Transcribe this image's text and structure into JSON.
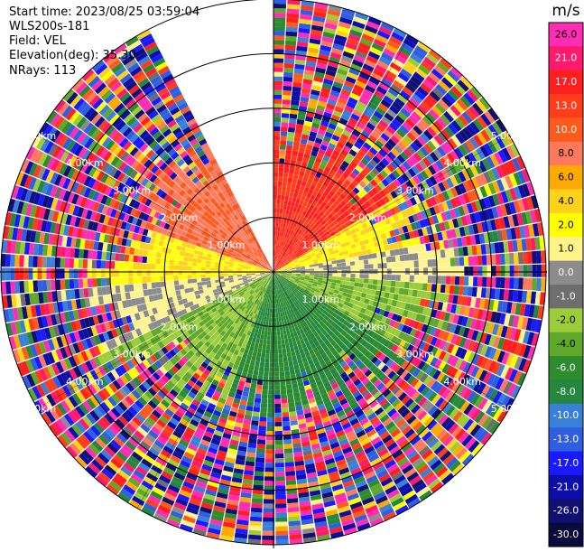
{
  "info": {
    "start_time": "Start time: 2023/08/25 03:59:04",
    "station": "WLS200s-181",
    "field": "Field: VEL",
    "elevation": "Elevation(deg): 35.30",
    "nrays": "NRays: 113"
  },
  "colorbar": {
    "unit": "m/s",
    "ticks": [
      "26.0",
      "21.0",
      "17.0",
      "13.0",
      "10.0",
      "8.0",
      "6.0",
      "4.0",
      "2.0",
      "1.0",
      "0.0",
      "-1.0",
      "-2.0",
      "-4.0",
      "-6.0",
      "-8.0",
      "-10.0",
      "-13.0",
      "-17.0",
      "-21.0",
      "-26.0",
      "-30.0"
    ],
    "colors": [
      "#ff2db4",
      "#ff1a6e",
      "#ff1f1f",
      "#ff3d1a",
      "#ff5a1e",
      "#ff7a5c",
      "#ffaa00",
      "#ffd21a",
      "#ffff00",
      "#fff38a",
      "#8c8c8c",
      "#6e6e6e",
      "#9ccc3a",
      "#5fa82a",
      "#2e8b2e",
      "#23873f",
      "#3a7fd8",
      "#2f5fe0",
      "#1a1aff",
      "#0d0da8",
      "#101070",
      "#0a0a3c"
    ]
  },
  "chart_data": {
    "type": "heatmap",
    "title": "",
    "projection": "polar (PPI)",
    "field": "VEL",
    "units": "m/s",
    "value_range": [
      -30,
      26
    ],
    "range_rings_km": [
      1.0,
      2.0,
      3.0,
      4.0,
      5.0
    ],
    "ring_labels": [
      "1.00km",
      "2.00km",
      "3.00km",
      "4.00km",
      "5.00km"
    ],
    "max_range_km": 5.0,
    "nrays": 113,
    "gap_azimuth_deg": [
      333,
      360
    ],
    "sector_pattern": [
      {
        "azimuth_deg": [
          0,
          60
        ],
        "near_range_velocity_ms": 13.0
      },
      {
        "azimuth_deg": [
          60,
          80
        ],
        "near_range_velocity_ms": 2.0
      },
      {
        "azimuth_deg": [
          80,
          95
        ],
        "near_range_velocity_ms": 0.0
      },
      {
        "azimuth_deg": [
          95,
          120
        ],
        "near_range_velocity_ms": -4.0
      },
      {
        "azimuth_deg": [
          120,
          200
        ],
        "near_range_velocity_ms": -8.0
      },
      {
        "azimuth_deg": [
          200,
          245
        ],
        "near_range_velocity_ms": -4.0
      },
      {
        "azimuth_deg": [
          245,
          265
        ],
        "near_range_velocity_ms": 0.0
      },
      {
        "azimuth_deg": [
          265,
          290
        ],
        "near_range_velocity_ms": 2.0
      },
      {
        "azimuth_deg": [
          290,
          333
        ],
        "near_range_velocity_ms": 8.0
      }
    ],
    "grid": true
  }
}
